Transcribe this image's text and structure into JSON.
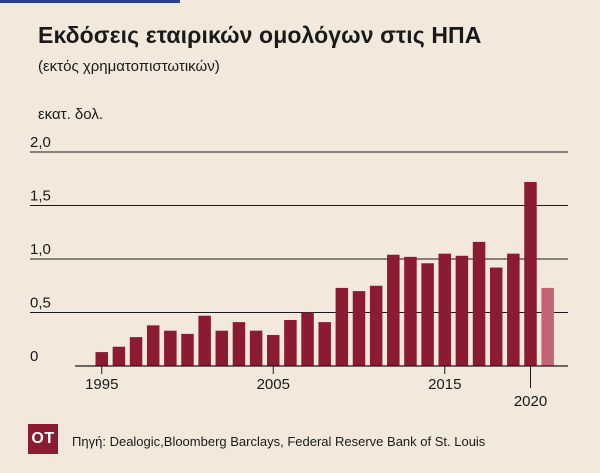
{
  "header": {
    "title": "Εκδόσεις εταιρικών ομολόγων στις ΗΠΑ",
    "subtitle": "(εκτός χρηματοπιστωτικών)"
  },
  "footer": {
    "logo": "ΟΤ",
    "source": "Πηγή: Dealogic,Bloomberg Barclays, Federal Reserve Bank of St. Louis"
  },
  "colors": {
    "bar": "#8b1a33",
    "bar_partial": "#c46373",
    "background": "#f2e9dc"
  },
  "chart_data": {
    "type": "bar",
    "ylabel": "εκατ. δολ.",
    "ylim": [
      0,
      2.0
    ],
    "yticks": [
      0,
      0.5,
      1.0,
      1.5,
      2.0
    ],
    "ytick_labels": [
      "0",
      "0,5",
      "1,0",
      "1,5",
      "2,0"
    ],
    "xticks": [
      1995,
      2005,
      2015,
      2020
    ],
    "grid": true,
    "x": [
      1995,
      1996,
      1997,
      1998,
      1999,
      2000,
      2001,
      2002,
      2003,
      2004,
      2005,
      2006,
      2007,
      2008,
      2009,
      2010,
      2011,
      2012,
      2013,
      2014,
      2015,
      2016,
      2017,
      2018,
      2019,
      2020,
      2021
    ],
    "values": [
      0.13,
      0.18,
      0.27,
      0.38,
      0.33,
      0.3,
      0.47,
      0.33,
      0.41,
      0.33,
      0.29,
      0.43,
      0.5,
      0.41,
      0.73,
      0.7,
      0.75,
      1.04,
      1.02,
      0.96,
      1.05,
      1.03,
      1.16,
      0.92,
      1.05,
      1.72,
      0.73
    ],
    "partial_years": [
      2021
    ]
  }
}
